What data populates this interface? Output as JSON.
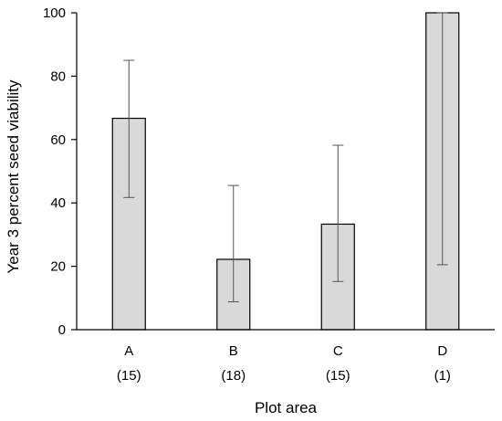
{
  "chart_data": {
    "type": "bar",
    "title": "",
    "xlabel": "Plot area",
    "ylabel": "Year 3 percent seed viability",
    "ylim": [
      0,
      100
    ],
    "yticks": [
      0,
      20,
      40,
      60,
      80,
      100
    ],
    "grid": false,
    "legend": "none",
    "categories": [
      "A",
      "B",
      "C",
      "D"
    ],
    "sample_sizes": [
      "(15)",
      "(18)",
      "(15)",
      "(1)"
    ],
    "values": [
      66.7,
      22.2,
      33.3,
      100
    ],
    "error_low": [
      41.7,
      8.8,
      15.2,
      20.5
    ],
    "error_high": [
      85.0,
      45.5,
      58.2,
      100
    ],
    "colors": {
      "bar_fill": "#d9d9d9",
      "bar_stroke": "#000000",
      "axis": "#000000",
      "error_bar": "#555555"
    }
  }
}
